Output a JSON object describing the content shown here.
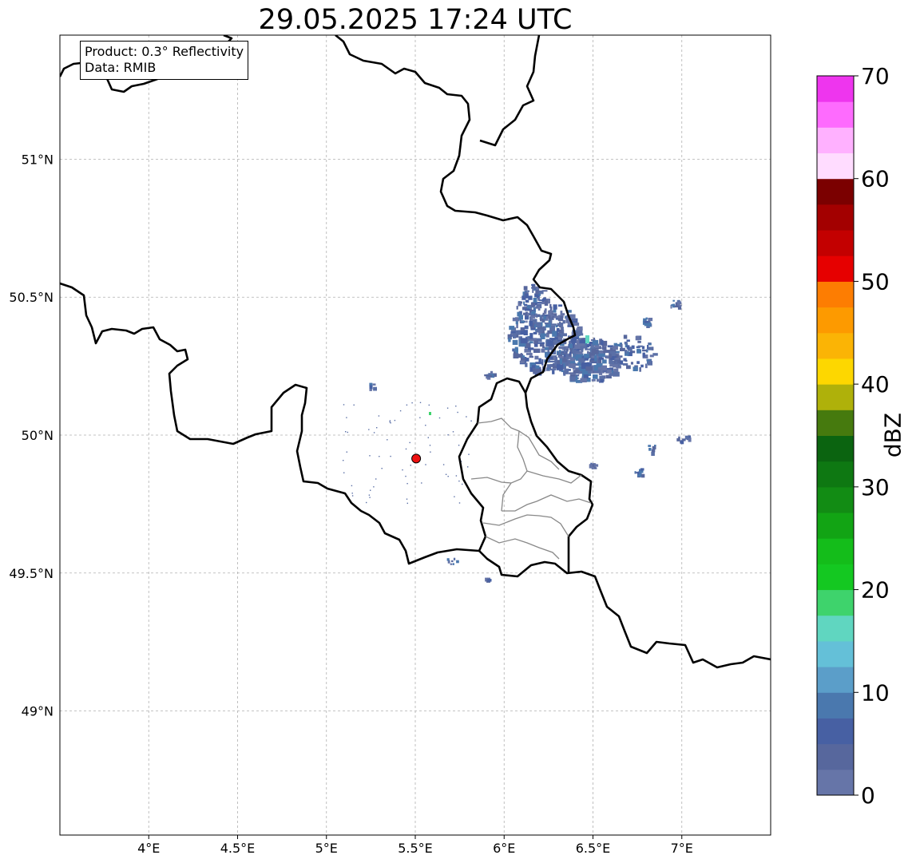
{
  "title": "29.05.2025 17:24 UTC",
  "info": {
    "product_line": "Product: 0.3° Reflectivity",
    "data_line": "Data: RMIB"
  },
  "map": {
    "lon_range": [
      3.5,
      7.5
    ],
    "lat_range": [
      48.55,
      51.45
    ],
    "lon_ticks": [
      {
        "value": 4.0,
        "label": "4°E"
      },
      {
        "value": 4.5,
        "label": "4.5°E"
      },
      {
        "value": 5.0,
        "label": "5°E"
      },
      {
        "value": 5.5,
        "label": "5.5°E"
      },
      {
        "value": 6.0,
        "label": "6°E"
      },
      {
        "value": 6.5,
        "label": "6.5°E"
      },
      {
        "value": 7.0,
        "label": "7°E"
      }
    ],
    "lat_ticks": [
      {
        "value": 51.0,
        "label": "51°N"
      },
      {
        "value": 50.5,
        "label": "50.5°N"
      },
      {
        "value": 50.0,
        "label": "50°N"
      },
      {
        "value": 49.5,
        "label": "49.5°N"
      },
      {
        "value": 49.0,
        "label": "49°N"
      }
    ],
    "gridlines": true,
    "radar_site": {
      "lon": 5.505,
      "lat": 49.915,
      "color": "#ee1111"
    },
    "border_color": "#000000",
    "region_border_color": "#888888"
  },
  "colorbar": {
    "label": "dBZ",
    "min": 0,
    "max": 70,
    "step": 2.5,
    "ticks": [
      {
        "value": 0,
        "label": "0"
      },
      {
        "value": 10,
        "label": "10"
      },
      {
        "value": 20,
        "label": "20"
      },
      {
        "value": 30,
        "label": "30"
      },
      {
        "value": 40,
        "label": "40"
      },
      {
        "value": 50,
        "label": "50"
      },
      {
        "value": 60,
        "label": "60"
      },
      {
        "value": 70,
        "label": "70"
      }
    ],
    "colors": [
      "#6675a8",
      "#57679d",
      "#4760a3",
      "#4a78ae",
      "#5b9ec9",
      "#64c0d8",
      "#60d6c0",
      "#3ed36c",
      "#14c821",
      "#14bd1a",
      "#12a414",
      "#128c14",
      "#0e7812",
      "#0b6410",
      "#467a0e",
      "#afb10a",
      "#fdd700",
      "#fbb405",
      "#fd9a00",
      "#fd7d02",
      "#e60000",
      "#c30000",
      "#a30000",
      "#7b0000",
      "#ffdcff",
      "#ffb1ff",
      "#fe6bfe",
      "#ee35ee"
    ]
  }
}
